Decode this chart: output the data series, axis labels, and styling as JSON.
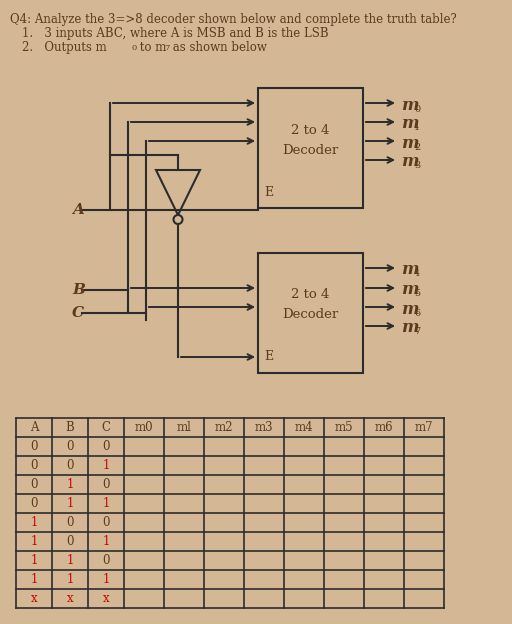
{
  "bg_color": "#D4B896",
  "title_text": "Q4: Analyze the 3=>8 decoder shown below and complete the truth table?",
  "bullet1": "1.   3 inputs ABC, where A is MSB and B is the LSB",
  "text_color": "#5C3A1E",
  "dark_color": "#2C2C2C",
  "table_header": [
    "A",
    "B",
    "C",
    "m0",
    "ml",
    "m2",
    "m3",
    "m4",
    "m5",
    "m6",
    "m7"
  ],
  "table_rows": [
    [
      "0",
      "0",
      "0",
      "",
      "",
      "",
      "",
      "",
      "",
      "",
      ""
    ],
    [
      "0",
      "0",
      "1",
      "",
      "",
      "",
      "",
      "",
      "",
      "",
      ""
    ],
    [
      "0",
      "1",
      "0",
      "",
      "",
      "",
      "",
      "",
      "",
      "",
      ""
    ],
    [
      "0",
      "1",
      "1",
      "",
      "",
      "",
      "",
      "",
      "",
      "",
      ""
    ],
    [
      "1",
      "0",
      "0",
      "",
      "",
      "",
      "",
      "",
      "",
      "",
      ""
    ],
    [
      "1",
      "0",
      "1",
      "",
      "",
      "",
      "",
      "",
      "",
      "",
      ""
    ],
    [
      "1",
      "1",
      "0",
      "",
      "",
      "",
      "",
      "",
      "",
      "",
      ""
    ],
    [
      "1",
      "1",
      "1",
      "",
      "",
      "",
      "",
      "",
      "",
      "",
      ""
    ],
    [
      "x",
      "x",
      "x",
      "",
      "",
      "",
      "",
      "",
      "",
      "",
      ""
    ]
  ]
}
